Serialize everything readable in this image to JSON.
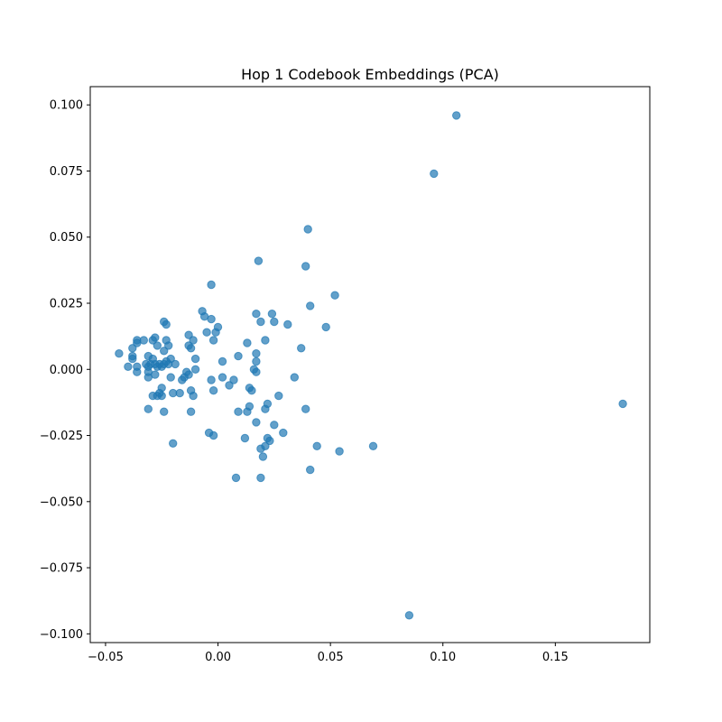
{
  "chart_data": {
    "type": "scatter",
    "title": "Hop 1 Codebook Embeddings (PCA)",
    "xlabel": "",
    "ylabel": "",
    "xlim": [
      -0.0568,
      0.192
    ],
    "ylim": [
      -0.1033,
      0.1069
    ],
    "xticks": [
      -0.05,
      0.0,
      0.05,
      0.1,
      0.15
    ],
    "xtick_labels": [
      "−0.05",
      "0.00",
      "0.05",
      "0.10",
      "0.15"
    ],
    "yticks": [
      -0.1,
      -0.075,
      -0.05,
      -0.025,
      0.0,
      0.025,
      0.05,
      0.075,
      0.1
    ],
    "ytick_labels": [
      "−0.100",
      "−0.075",
      "−0.050",
      "−0.025",
      "0.000",
      "0.025",
      "0.050",
      "0.075",
      "0.100"
    ],
    "grid": false,
    "marker_color": "#1f77b4",
    "marker_alpha": 0.7,
    "points": [
      [
        0.106,
        0.096
      ],
      [
        0.096,
        0.074
      ],
      [
        0.18,
        -0.013
      ],
      [
        0.085,
        -0.093
      ],
      [
        0.04,
        0.053
      ],
      [
        0.018,
        0.041
      ],
      [
        0.039,
        0.039
      ],
      [
        0.052,
        0.028
      ],
      [
        0.041,
        0.024
      ],
      [
        0.017,
        0.021
      ],
      [
        0.024,
        0.021
      ],
      [
        0.025,
        0.018
      ],
      [
        0.019,
        0.018
      ],
      [
        0.031,
        0.017
      ],
      [
        0.048,
        0.016
      ],
      [
        0.021,
        0.011
      ],
      [
        0.013,
        0.01
      ],
      [
        0.037,
        0.008
      ],
      [
        0.017,
        0.006
      ],
      [
        0.017,
        0.003
      ],
      [
        0.016,
        0.0
      ],
      [
        0.017,
        -0.001
      ],
      [
        0.034,
        -0.003
      ],
      [
        0.009,
        0.005
      ],
      [
        0.002,
        0.003
      ],
      [
        -0.003,
        0.032
      ],
      [
        -0.007,
        0.022
      ],
      [
        -0.006,
        0.02
      ],
      [
        -0.003,
        0.019
      ],
      [
        0.0,
        0.016
      ],
      [
        -0.001,
        0.014
      ],
      [
        -0.005,
        0.014
      ],
      [
        -0.002,
        0.011
      ],
      [
        0.002,
        -0.003
      ],
      [
        -0.003,
        -0.004
      ],
      [
        0.005,
        -0.006
      ],
      [
        0.007,
        -0.004
      ],
      [
        -0.002,
        -0.008
      ],
      [
        0.014,
        -0.007
      ],
      [
        0.015,
        -0.008
      ],
      [
        0.027,
        -0.01
      ],
      [
        0.039,
        -0.015
      ],
      [
        0.014,
        -0.014
      ],
      [
        0.013,
        -0.016
      ],
      [
        0.009,
        -0.016
      ],
      [
        0.021,
        -0.015
      ],
      [
        0.022,
        -0.013
      ],
      [
        0.017,
        -0.02
      ],
      [
        0.025,
        -0.021
      ],
      [
        0.029,
        -0.024
      ],
      [
        0.012,
        -0.026
      ],
      [
        0.022,
        -0.026
      ],
      [
        0.023,
        -0.027
      ],
      [
        0.021,
        -0.029
      ],
      [
        0.019,
        -0.03
      ],
      [
        0.044,
        -0.029
      ],
      [
        0.054,
        -0.031
      ],
      [
        0.069,
        -0.029
      ],
      [
        0.02,
        -0.033
      ],
      [
        0.041,
        -0.038
      ],
      [
        0.008,
        -0.041
      ],
      [
        0.019,
        -0.041
      ],
      [
        -0.004,
        -0.024
      ],
      [
        -0.002,
        -0.025
      ],
      [
        -0.02,
        -0.028
      ],
      [
        -0.012,
        -0.016
      ],
      [
        -0.024,
        -0.016
      ],
      [
        -0.031,
        -0.015
      ],
      [
        -0.024,
        0.018
      ],
      [
        -0.023,
        0.017
      ],
      [
        -0.013,
        0.013
      ],
      [
        -0.011,
        0.011
      ],
      [
        -0.013,
        0.009
      ],
      [
        -0.012,
        0.008
      ],
      [
        -0.01,
        0.004
      ],
      [
        -0.01,
        0.0
      ],
      [
        -0.014,
        -0.001
      ],
      [
        -0.015,
        -0.003
      ],
      [
        -0.013,
        -0.002
      ],
      [
        -0.016,
        -0.004
      ],
      [
        -0.021,
        -0.003
      ],
      [
        -0.012,
        -0.008
      ],
      [
        -0.011,
        -0.01
      ],
      [
        -0.017,
        -0.009
      ],
      [
        -0.02,
        -0.009
      ],
      [
        -0.025,
        -0.007
      ],
      [
        -0.026,
        -0.009
      ],
      [
        -0.027,
        -0.01
      ],
      [
        -0.029,
        -0.01
      ],
      [
        -0.025,
        -0.01
      ],
      [
        -0.031,
        -0.003
      ],
      [
        -0.028,
        -0.002
      ],
      [
        -0.031,
        -0.001
      ],
      [
        -0.023,
        0.011
      ],
      [
        -0.022,
        0.009
      ],
      [
        -0.028,
        0.012
      ],
      [
        -0.029,
        0.011
      ],
      [
        -0.027,
        0.009
      ],
      [
        -0.024,
        0.007
      ],
      [
        -0.021,
        0.004
      ],
      [
        -0.022,
        0.002
      ],
      [
        -0.023,
        0.003
      ],
      [
        -0.019,
        0.002
      ],
      [
        -0.024,
        0.002
      ],
      [
        -0.025,
        0.001
      ],
      [
        -0.026,
        0.002
      ],
      [
        -0.027,
        0.001
      ],
      [
        -0.028,
        0.002
      ],
      [
        -0.029,
        0.004
      ],
      [
        -0.03,
        0.002
      ],
      [
        -0.031,
        0.001
      ],
      [
        -0.032,
        0.002
      ],
      [
        -0.031,
        0.005
      ],
      [
        -0.033,
        0.011
      ],
      [
        -0.036,
        0.011
      ],
      [
        -0.036,
        0.01
      ],
      [
        -0.038,
        0.008
      ],
      [
        -0.038,
        0.005
      ],
      [
        -0.036,
        0.001
      ],
      [
        -0.036,
        -0.001
      ],
      [
        -0.04,
        0.001
      ],
      [
        -0.044,
        0.006
      ],
      [
        -0.038,
        0.004
      ]
    ]
  }
}
